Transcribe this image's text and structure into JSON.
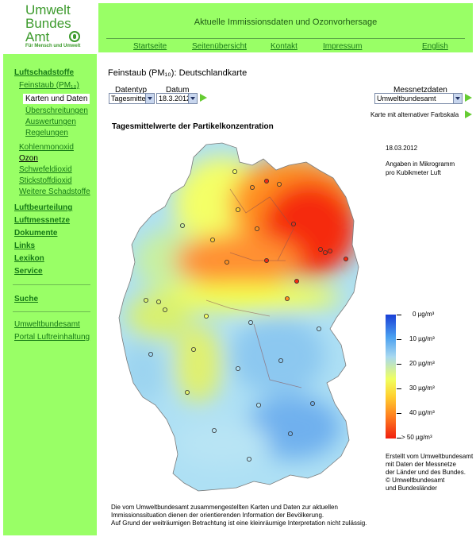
{
  "logo": {
    "lines": [
      "Umwelt",
      "Bundes",
      "Amt"
    ],
    "subline": "Für Mensch und Umwelt",
    "seal_icon": "eagle-seal-icon"
  },
  "header": {
    "title": "Aktuelle Immissionsdaten und Ozonvorhersage",
    "nav": [
      "Startseite",
      "Seitenübersicht",
      "Kontakt",
      "Impressum",
      "English"
    ]
  },
  "sidebar": {
    "section": "Luftschadstoffe",
    "feinstaub": "Feinstaub (PM₁₀)",
    "active": "Karten und Daten",
    "sub": [
      "Überschreitungen",
      "Auswertungen",
      "Regelungen"
    ],
    "pollutants": [
      "Kohlenmonoxid",
      "Ozon",
      "Schwefeldioxid",
      "Stickstoffdioxid",
      "Weitere Schadstoffe"
    ],
    "sections": [
      "Luftbeurteilung",
      "Luftmessnetze",
      "Dokumente",
      "Links",
      "Lexikon",
      "Service"
    ],
    "search": "Suche",
    "bottom": [
      "Umweltbundesamt",
      "Portal Luftreinhaltung"
    ]
  },
  "content": {
    "title": "Feinstaub (PM₁₀): Deutschlandkarte",
    "datentyp_label": "Datentyp",
    "datentyp_value": "Tagesmittel",
    "datum_label": "Datum",
    "datum_value": "18.3.2012",
    "messnetz_label": "Messnetzdaten",
    "messnetz_value": "Umweltbundesamt",
    "alt_link": "Karte mit alternativer Farbskala",
    "map_title": "Tagesmittelwerte der Partikelkonzentration",
    "map_date": "18.03.2012",
    "units_note": [
      "Angaben in Mikrogramm",
      "pro Kubikmeter Luft"
    ]
  },
  "legend": {
    "labels": [
      "0 µg/m³",
      "10 µg/m³",
      "20 µg/m³",
      "30 µg/m³",
      "40 µg/m³",
      "> 50 µg/m³"
    ],
    "colors": [
      "#1a3fd6",
      "#4aa0f0",
      "#a8d8f0",
      "#f0ff60",
      "#ffd030",
      "#ff8020",
      "#f02010"
    ]
  },
  "credit": [
    "Erstellt vom Umweltbundesamt",
    "mit Daten der Messnetze",
    "der Länder und des Bundes.",
    "© Umweltbundesamt",
    "und Bundesländer"
  ],
  "footer": [
    "Die vom Umweltbundesamt zusammengestellten Karten und Daten zur aktuellen",
    "Immissionssituation dienen der orientierenden Information der Bevölkerung.",
    "Auf Grund der weiträumigen Betrachtung ist eine kleinräumige Interpretation nicht zulässig."
  ]
}
